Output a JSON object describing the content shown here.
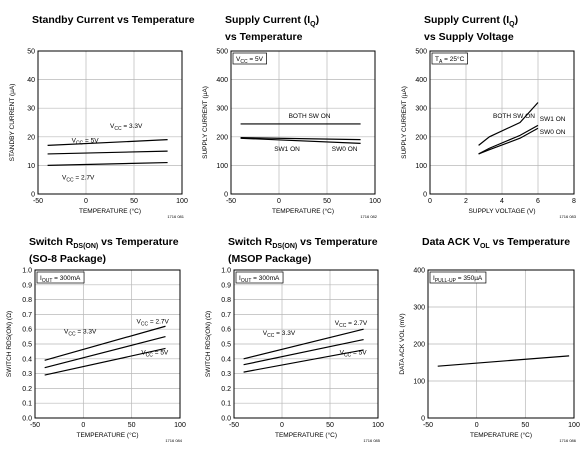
{
  "chart_data": [
    {
      "type": "line",
      "title": [
        "Standby Current vs Temperature"
      ],
      "xlabel": "TEMPERATURE (°C)",
      "ylabel": "STANDBY CURRENT (µA)",
      "xlim": [
        -50,
        100
      ],
      "ylim": [
        0,
        50
      ],
      "xticks": [
        -50,
        0,
        50,
        100
      ],
      "yticks": [
        0,
        10,
        20,
        30,
        40,
        50
      ],
      "grid": true,
      "figure_id": "1716 081",
      "series": [
        {
          "x": [
            -40,
            85
          ],
          "y": [
            17,
            19
          ]
        },
        {
          "x": [
            -40,
            85
          ],
          "y": [
            14,
            15
          ]
        },
        {
          "x": [
            -40,
            85
          ],
          "y": [
            10,
            11
          ]
        }
      ],
      "labels": [
        {
          "text": "VCC = 3.3V",
          "x": 25,
          "y": 23
        },
        {
          "text": "VCC = 5V",
          "x": -15,
          "y": 18
        },
        {
          "text": "VCC = 2.7V",
          "x": -25,
          "y": 5
        }
      ],
      "boxlabel": ""
    },
    {
      "type": "line",
      "title": [
        "Supply Current (IQ)",
        "vs Temperature"
      ],
      "xlabel": "TEMPERATURE (°C)",
      "ylabel": "SUPPLY CURRENT (µA)",
      "xlim": [
        -50,
        100
      ],
      "ylim": [
        0,
        500
      ],
      "xticks": [
        -50,
        0,
        50,
        100
      ],
      "yticks": [
        0,
        100,
        200,
        300,
        400,
        500
      ],
      "grid": true,
      "figure_id": "1716 082",
      "series": [
        {
          "x": [
            -40,
            85
          ],
          "y": [
            245,
            245
          ]
        },
        {
          "x": [
            -40,
            85
          ],
          "y": [
            197,
            190
          ]
        },
        {
          "x": [
            -40,
            85
          ],
          "y": [
            195,
            177
          ]
        }
      ],
      "labels": [
        {
          "text": "BOTH SW ON",
          "x": 10,
          "y": 265
        },
        {
          "text": "SW1 ON",
          "x": -5,
          "y": 150
        },
        {
          "text": "SW0 ON",
          "x": 55,
          "y": 150
        }
      ],
      "boxlabel": "VCC = 5V"
    },
    {
      "type": "line",
      "title": [
        "Supply Current (IQ)",
        "vs Supply Voltage"
      ],
      "xlabel": "SUPPLY VOLTAGE (V)",
      "ylabel": "SUPPLY CURRENT (µA)",
      "xlim": [
        0,
        8
      ],
      "ylim": [
        0,
        500
      ],
      "xticks": [
        0,
        2,
        4,
        6,
        8
      ],
      "yticks": [
        0,
        100,
        200,
        300,
        400,
        500
      ],
      "grid": true,
      "figure_id": "1716 083",
      "series": [
        {
          "x": [
            2.7,
            3.3,
            5,
            6
          ],
          "y": [
            170,
            200,
            250,
            320
          ]
        },
        {
          "x": [
            2.7,
            3.3,
            5,
            6
          ],
          "y": [
            140,
            160,
            205,
            240
          ]
        },
        {
          "x": [
            2.7,
            3.3,
            5,
            6
          ],
          "y": [
            140,
            155,
            195,
            230
          ]
        }
      ],
      "labels": [
        {
          "text": "BOTH SW ON",
          "x": 3.5,
          "y": 265
        },
        {
          "text": "SW1 ON",
          "x": 6.1,
          "y": 255
        },
        {
          "text": "SW0 ON",
          "x": 6.1,
          "y": 210
        }
      ],
      "boxlabel": "TA = 25°C"
    },
    {
      "type": "line",
      "title": [
        "Switch RDS(ON) vs Temperature",
        "(SO-8 Package)"
      ],
      "xlabel": "TEMPERATURE (°C)",
      "ylabel": "SWITCH RDS(ON) (Ω)",
      "xlim": [
        -50,
        100
      ],
      "ylim": [
        0,
        1.0
      ],
      "xticks": [
        -50,
        0,
        50,
        100
      ],
      "yticks": [
        0,
        0.1,
        0.2,
        0.3,
        0.4,
        0.5,
        0.6,
        0.7,
        0.8,
        0.9,
        1.0
      ],
      "grid": true,
      "figure_id": "1716 084",
      "series": [
        {
          "x": [
            -40,
            85
          ],
          "y": [
            0.39,
            0.62
          ]
        },
        {
          "x": [
            -40,
            85
          ],
          "y": [
            0.34,
            0.55
          ]
        },
        {
          "x": [
            -40,
            85
          ],
          "y": [
            0.29,
            0.47
          ]
        }
      ],
      "labels": [
        {
          "text": "VCC = 2.7V",
          "x": 55,
          "y": 0.64
        },
        {
          "text": "VCC = 3.3V",
          "x": -20,
          "y": 0.57
        },
        {
          "text": "VCC = 5V",
          "x": 60,
          "y": 0.43
        }
      ],
      "boxlabel": "IOUT = 300mA"
    },
    {
      "type": "line",
      "title": [
        "Switch RDS(ON) vs Temperature",
        "(MSOP Package)"
      ],
      "xlabel": "TEMPERATURE (°C)",
      "ylabel": "SWITCH RDS(ON) (Ω)",
      "xlim": [
        -50,
        100
      ],
      "ylim": [
        0,
        1.0
      ],
      "xticks": [
        -50,
        0,
        50,
        100
      ],
      "yticks": [
        0,
        0.1,
        0.2,
        0.3,
        0.4,
        0.5,
        0.6,
        0.7,
        0.8,
        0.9,
        1.0
      ],
      "grid": true,
      "figure_id": "1716 085",
      "series": [
        {
          "x": [
            -40,
            85
          ],
          "y": [
            0.4,
            0.6
          ]
        },
        {
          "x": [
            -40,
            85
          ],
          "y": [
            0.36,
            0.53
          ]
        },
        {
          "x": [
            -40,
            85
          ],
          "y": [
            0.31,
            0.46
          ]
        }
      ],
      "labels": [
        {
          "text": "VCC = 2.7V",
          "x": 55,
          "y": 0.63
        },
        {
          "text": "VCC = 3.3V",
          "x": -20,
          "y": 0.56
        },
        {
          "text": "VCC = 5V",
          "x": 60,
          "y": 0.43
        }
      ],
      "boxlabel": "IOUT = 300mA"
    },
    {
      "type": "line",
      "title": [
        "Data ACK VOL vs Temperature"
      ],
      "xlabel": "TEMPERATURE (°C)",
      "ylabel": "DATA ACK VOL (mV)",
      "xlim": [
        -50,
        100
      ],
      "ylim": [
        0,
        400
      ],
      "xticks": [
        -50,
        0,
        50,
        100
      ],
      "yticks": [
        0,
        100,
        200,
        300,
        400
      ],
      "grid": true,
      "figure_id": "1716 086",
      "series": [
        {
          "x": [
            -40,
            95
          ],
          "y": [
            140,
            168
          ]
        }
      ],
      "labels": [],
      "boxlabel": "IPULL-UP = 350µA"
    }
  ]
}
